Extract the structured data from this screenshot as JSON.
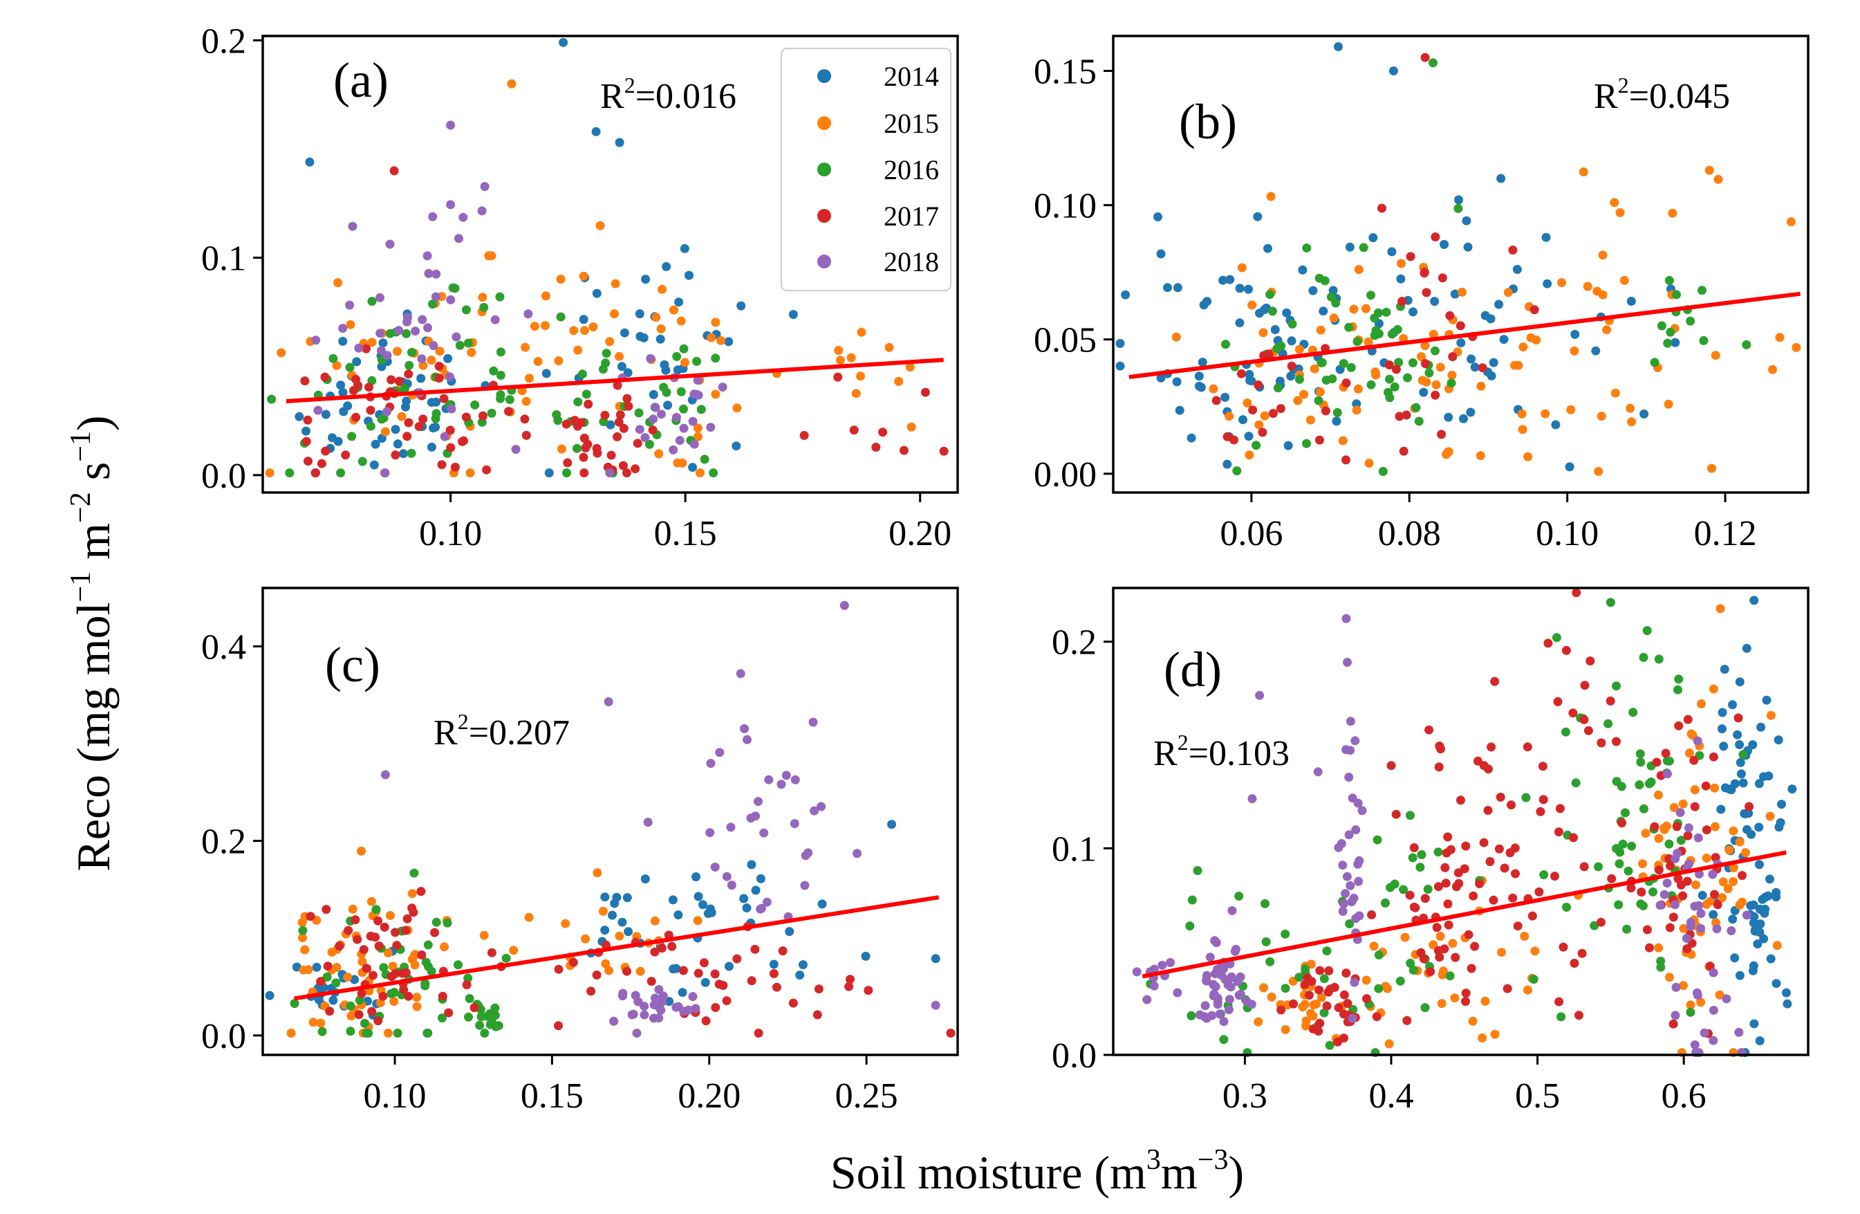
{
  "figure": {
    "ylabel": "Reco (mg mol",
    "ylabel_sup1": "−1",
    "ylabel_mid1": " m",
    "ylabel_sup2": "−2",
    "ylabel_mid2": " s",
    "ylabel_sup3": "−1",
    "ylabel_end": ")",
    "xlabel": "Soil moisture (m",
    "xlabel_sup1": "3",
    "xlabel_mid": "m",
    "xlabel_sup2": "−3",
    "xlabel_end": ")"
  },
  "legend": {
    "entries": [
      "2014",
      "2015",
      "2016",
      "2017",
      "2018"
    ],
    "colors": [
      "#1f77b4",
      "#ff7f0e",
      "#2ca02c",
      "#d62728",
      "#9467bd"
    ]
  },
  "fit_color": "#ff0000",
  "chart_data": [
    {
      "type": "scatter",
      "panel_label": "(a)",
      "r2_prefix": "R",
      "r2_exp": "2",
      "r2_value": "=0.016",
      "xlim": [
        0.06,
        0.208
      ],
      "ylim": [
        -0.008,
        0.202
      ],
      "xticks": [
        0.1,
        0.15,
        0.2
      ],
      "xtick_labels": [
        "0.10",
        "0.15",
        "0.20"
      ],
      "yticks": [
        0.0,
        0.1,
        0.2
      ],
      "ytick_labels": [
        "0.0",
        "0.1",
        "0.2"
      ],
      "fit": {
        "x": [
          0.065,
          0.205
        ],
        "y": [
          0.034,
          0.053
        ]
      },
      "has_legend": true,
      "clusters": [
        {
          "series": 0,
          "cx": 0.085,
          "cy": 0.03,
          "sx": 0.012,
          "sy": 0.018,
          "n": 45
        },
        {
          "series": 0,
          "cx": 0.145,
          "cy": 0.07,
          "sx": 0.012,
          "sy": 0.025,
          "n": 35
        },
        {
          "series": 1,
          "cx": 0.1,
          "cy": 0.05,
          "sx": 0.015,
          "sy": 0.025,
          "n": 45
        },
        {
          "series": 1,
          "cx": 0.14,
          "cy": 0.06,
          "sx": 0.015,
          "sy": 0.02,
          "n": 35
        },
        {
          "series": 1,
          "cx": 0.185,
          "cy": 0.05,
          "sx": 0.008,
          "sy": 0.015,
          "n": 10
        },
        {
          "series": 2,
          "cx": 0.095,
          "cy": 0.035,
          "sx": 0.015,
          "sy": 0.02,
          "n": 55
        },
        {
          "series": 2,
          "cx": 0.14,
          "cy": 0.03,
          "sx": 0.012,
          "sy": 0.02,
          "n": 30
        },
        {
          "series": 3,
          "cx": 0.09,
          "cy": 0.025,
          "sx": 0.012,
          "sy": 0.015,
          "n": 45
        },
        {
          "series": 3,
          "cx": 0.135,
          "cy": 0.02,
          "sx": 0.012,
          "sy": 0.012,
          "n": 30
        },
        {
          "series": 3,
          "cx": 0.19,
          "cy": 0.025,
          "sx": 0.01,
          "sy": 0.01,
          "n": 8
        },
        {
          "series": 4,
          "cx": 0.095,
          "cy": 0.07,
          "sx": 0.01,
          "sy": 0.03,
          "n": 40
        },
        {
          "series": 4,
          "cx": 0.145,
          "cy": 0.03,
          "sx": 0.006,
          "sy": 0.015,
          "n": 20
        }
      ],
      "points": [
        {
          "series": 0,
          "x": 0.124,
          "y": 0.199
        },
        {
          "series": 0,
          "x": 0.07,
          "y": 0.144
        },
        {
          "series": 1,
          "x": 0.113,
          "y": 0.18
        },
        {
          "series": 4,
          "x": 0.1,
          "y": 0.161
        },
        {
          "series": 3,
          "x": 0.088,
          "y": 0.14
        },
        {
          "series": 0,
          "x": 0.131,
          "y": 0.158
        },
        {
          "series": 0,
          "x": 0.136,
          "y": 0.153
        }
      ]
    },
    {
      "type": "scatter",
      "panel_label": "(b)",
      "r2_prefix": "R",
      "r2_exp": "2",
      "r2_value": "=0.045",
      "xlim": [
        0.0425,
        0.1305
      ],
      "ylim": [
        -0.007,
        0.163
      ],
      "xticks": [
        0.06,
        0.08,
        0.1,
        0.12
      ],
      "xtick_labels": [
        "0.06",
        "0.08",
        "0.10",
        "0.12"
      ],
      "yticks": [
        0.0,
        0.05,
        0.1,
        0.15
      ],
      "ytick_labels": [
        "0.00",
        "0.05",
        "0.10",
        "0.15"
      ],
      "fit": {
        "x": [
          0.0445,
          0.1295
        ],
        "y": [
          0.036,
          0.067
        ]
      },
      "has_legend": false,
      "clusters": [
        {
          "series": 0,
          "cx": 0.062,
          "cy": 0.05,
          "sx": 0.008,
          "sy": 0.02,
          "n": 70
        },
        {
          "series": 0,
          "cx": 0.09,
          "cy": 0.06,
          "sx": 0.01,
          "sy": 0.025,
          "n": 40
        },
        {
          "series": 1,
          "cx": 0.075,
          "cy": 0.04,
          "sx": 0.012,
          "sy": 0.02,
          "n": 60
        },
        {
          "series": 1,
          "cx": 0.105,
          "cy": 0.05,
          "sx": 0.012,
          "sy": 0.03,
          "n": 40
        },
        {
          "series": 2,
          "cx": 0.07,
          "cy": 0.05,
          "sx": 0.008,
          "sy": 0.02,
          "n": 55
        },
        {
          "series": 2,
          "cx": 0.115,
          "cy": 0.055,
          "sx": 0.006,
          "sy": 0.015,
          "n": 12
        },
        {
          "series": 3,
          "cx": 0.068,
          "cy": 0.03,
          "sx": 0.008,
          "sy": 0.015,
          "n": 25
        },
        {
          "series": 3,
          "cx": 0.085,
          "cy": 0.07,
          "sx": 0.005,
          "sy": 0.025,
          "n": 15
        }
      ],
      "points": [
        {
          "series": 0,
          "x": 0.071,
          "y": 0.159
        },
        {
          "series": 3,
          "x": 0.082,
          "y": 0.155
        },
        {
          "series": 2,
          "x": 0.083,
          "y": 0.153
        },
        {
          "series": 0,
          "x": 0.078,
          "y": 0.15
        },
        {
          "series": 1,
          "x": 0.118,
          "y": 0.113
        },
        {
          "series": 1,
          "x": 0.129,
          "y": 0.047
        }
      ]
    },
    {
      "type": "scatter",
      "panel_label": "(c)",
      "r2_prefix": "R",
      "r2_exp": "2",
      "r2_value": "=0.207",
      "xlim": [
        0.058,
        0.279
      ],
      "ylim": [
        -0.02,
        0.46
      ],
      "xticks": [
        0.1,
        0.15,
        0.2,
        0.25
      ],
      "xtick_labels": [
        "0.10",
        "0.15",
        "0.20",
        "0.25"
      ],
      "yticks": [
        0.0,
        0.2,
        0.4
      ],
      "ytick_labels": [
        "0.0",
        "0.2",
        "0.4"
      ],
      "fit": {
        "x": [
          0.068,
          0.273
        ],
        "y": [
          0.038,
          0.142
        ]
      },
      "has_legend": false,
      "clusters": [
        {
          "series": 0,
          "cx": 0.08,
          "cy": 0.04,
          "sx": 0.008,
          "sy": 0.02,
          "n": 20
        },
        {
          "series": 0,
          "cx": 0.2,
          "cy": 0.12,
          "sx": 0.025,
          "sy": 0.04,
          "n": 40
        },
        {
          "series": 1,
          "cx": 0.09,
          "cy": 0.07,
          "sx": 0.015,
          "sy": 0.04,
          "n": 55
        },
        {
          "series": 1,
          "cx": 0.16,
          "cy": 0.1,
          "sx": 0.02,
          "sy": 0.03,
          "n": 20
        },
        {
          "series": 2,
          "cx": 0.1,
          "cy": 0.06,
          "sx": 0.015,
          "sy": 0.04,
          "n": 45
        },
        {
          "series": 2,
          "cx": 0.128,
          "cy": 0.02,
          "sx": 0.004,
          "sy": 0.01,
          "n": 15
        },
        {
          "series": 3,
          "cx": 0.1,
          "cy": 0.07,
          "sx": 0.012,
          "sy": 0.035,
          "n": 45
        },
        {
          "series": 3,
          "cx": 0.2,
          "cy": 0.06,
          "sx": 0.025,
          "sy": 0.03,
          "n": 40
        },
        {
          "series": 4,
          "cx": 0.185,
          "cy": 0.03,
          "sx": 0.008,
          "sy": 0.01,
          "n": 25
        },
        {
          "series": 4,
          "cx": 0.22,
          "cy": 0.2,
          "sx": 0.015,
          "sy": 0.07,
          "n": 30
        }
      ],
      "points": [
        {
          "series": 4,
          "x": 0.243,
          "y": 0.442
        },
        {
          "series": 4,
          "x": 0.21,
          "y": 0.372
        },
        {
          "series": 4,
          "x": 0.168,
          "y": 0.343
        },
        {
          "series": 4,
          "x": 0.097,
          "y": 0.268
        },
        {
          "series": 0,
          "x": 0.258,
          "y": 0.217
        },
        {
          "series": 4,
          "x": 0.272,
          "y": 0.031
        },
        {
          "series": 0,
          "x": 0.272,
          "y": 0.079
        },
        {
          "series": 3,
          "x": 0.152,
          "y": 0.01
        }
      ]
    },
    {
      "type": "scatter",
      "panel_label": "(d)",
      "r2_prefix": "R",
      "r2_exp": "2",
      "r2_value": "=0.103",
      "xlim": [
        0.21,
        0.685
      ],
      "ylim": [
        0.0,
        0.226
      ],
      "xticks": [
        0.3,
        0.4,
        0.5,
        0.6
      ],
      "xtick_labels": [
        "0.3",
        "0.4",
        "0.5",
        "0.6"
      ],
      "yticks": [
        0.0,
        0.1,
        0.2
      ],
      "ytick_labels": [
        "0.0",
        "0.1",
        "0.2"
      ],
      "fit": {
        "x": [
          0.23,
          0.67
        ],
        "y": [
          0.038,
          0.098
        ]
      },
      "has_legend": false,
      "clusters": [
        {
          "series": 0,
          "cx": 0.645,
          "cy": 0.1,
          "sx": 0.012,
          "sy": 0.05,
          "n": 80
        },
        {
          "series": 1,
          "cx": 0.61,
          "cy": 0.08,
          "sx": 0.02,
          "sy": 0.05,
          "n": 60
        },
        {
          "series": 1,
          "cx": 0.44,
          "cy": 0.04,
          "sx": 0.03,
          "sy": 0.02,
          "n": 30
        },
        {
          "series": 1,
          "cx": 0.35,
          "cy": 0.025,
          "sx": 0.02,
          "sy": 0.01,
          "n": 25
        },
        {
          "series": 2,
          "cx": 0.56,
          "cy": 0.12,
          "sx": 0.03,
          "sy": 0.05,
          "n": 60
        },
        {
          "series": 2,
          "cx": 0.33,
          "cy": 0.04,
          "sx": 0.04,
          "sy": 0.02,
          "n": 35
        },
        {
          "series": 2,
          "cx": 0.42,
          "cy": 0.06,
          "sx": 0.02,
          "sy": 0.03,
          "n": 20
        },
        {
          "series": 3,
          "cx": 0.49,
          "cy": 0.12,
          "sx": 0.04,
          "sy": 0.04,
          "n": 70
        },
        {
          "series": 3,
          "cx": 0.43,
          "cy": 0.07,
          "sx": 0.015,
          "sy": 0.02,
          "n": 30
        },
        {
          "series": 3,
          "cx": 0.36,
          "cy": 0.025,
          "sx": 0.015,
          "sy": 0.01,
          "n": 30
        },
        {
          "series": 3,
          "cx": 0.6,
          "cy": 0.1,
          "sx": 0.02,
          "sy": 0.04,
          "n": 40
        },
        {
          "series": 4,
          "cx": 0.285,
          "cy": 0.035,
          "sx": 0.01,
          "sy": 0.012,
          "n": 45
        },
        {
          "series": 4,
          "cx": 0.373,
          "cy": 0.1,
          "sx": 0.004,
          "sy": 0.04,
          "n": 30
        },
        {
          "series": 4,
          "cx": 0.61,
          "cy": 0.06,
          "sx": 0.012,
          "sy": 0.04,
          "n": 40
        },
        {
          "series": 4,
          "cx": 0.24,
          "cy": 0.038,
          "sx": 0.008,
          "sy": 0.005,
          "n": 10
        }
      ],
      "points": [
        {
          "series": 4,
          "x": 0.31,
          "y": 0.174
        },
        {
          "series": 4,
          "x": 0.37,
          "y": 0.19
        },
        {
          "series": 4,
          "x": 0.35,
          "y": 0.137
        },
        {
          "series": 4,
          "x": 0.305,
          "y": 0.124
        },
        {
          "series": 0,
          "x": 0.648,
          "y": 0.22
        },
        {
          "series": 2,
          "x": 0.55,
          "y": 0.219
        },
        {
          "series": 1,
          "x": 0.625,
          "y": 0.216
        }
      ]
    }
  ]
}
